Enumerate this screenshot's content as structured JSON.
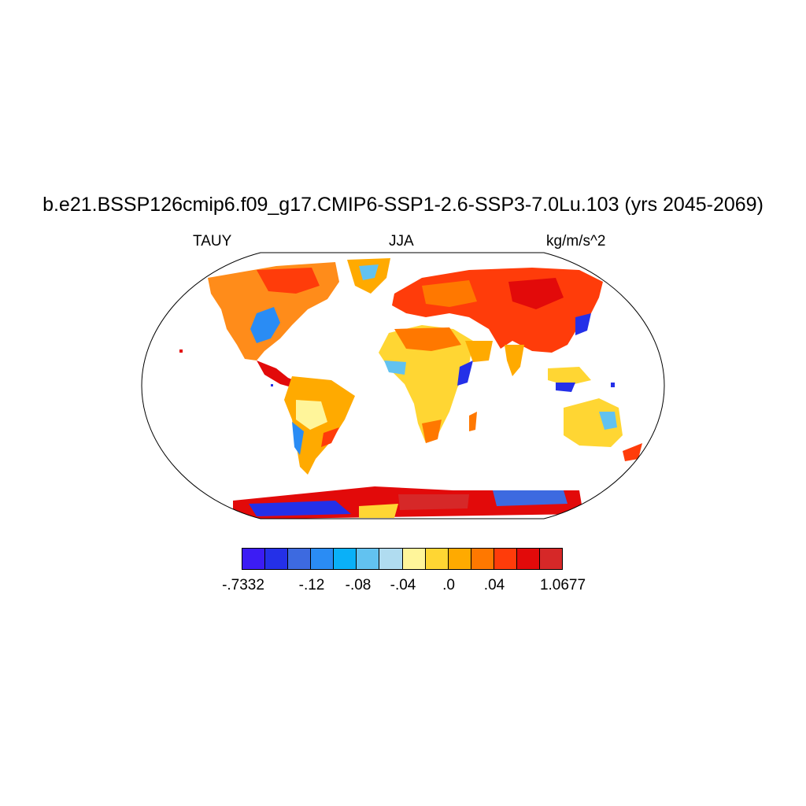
{
  "title": "b.e21.BSSP126cmip6.f09_g17.CMIP6-SSP1-2.6-SSP3-7.0Lu.103 (yrs 2045-2069)",
  "variable": "TAUY",
  "season": "JJA",
  "units": "kg/m/s^2",
  "colorbar": {
    "colors": [
      "#3c1cf4",
      "#2430e8",
      "#3d6ae0",
      "#2a8cf4",
      "#0ab0f8",
      "#62c2f0",
      "#b0dcf0",
      "#fff59a",
      "#ffd633",
      "#ffaa00",
      "#ff7800",
      "#ff3c0a",
      "#e20a0a",
      "#d62828"
    ],
    "labels": [
      "-.7332",
      "-.12",
      "-.08",
      "-.04",
      ".0",
      ".04",
      "1.0677"
    ]
  },
  "land_color_regions": {
    "north_america": "orange-red",
    "eurasia": "red",
    "africa": "orange-yellow",
    "antarctica": "mixed-blue-red",
    "ocean": "white"
  }
}
